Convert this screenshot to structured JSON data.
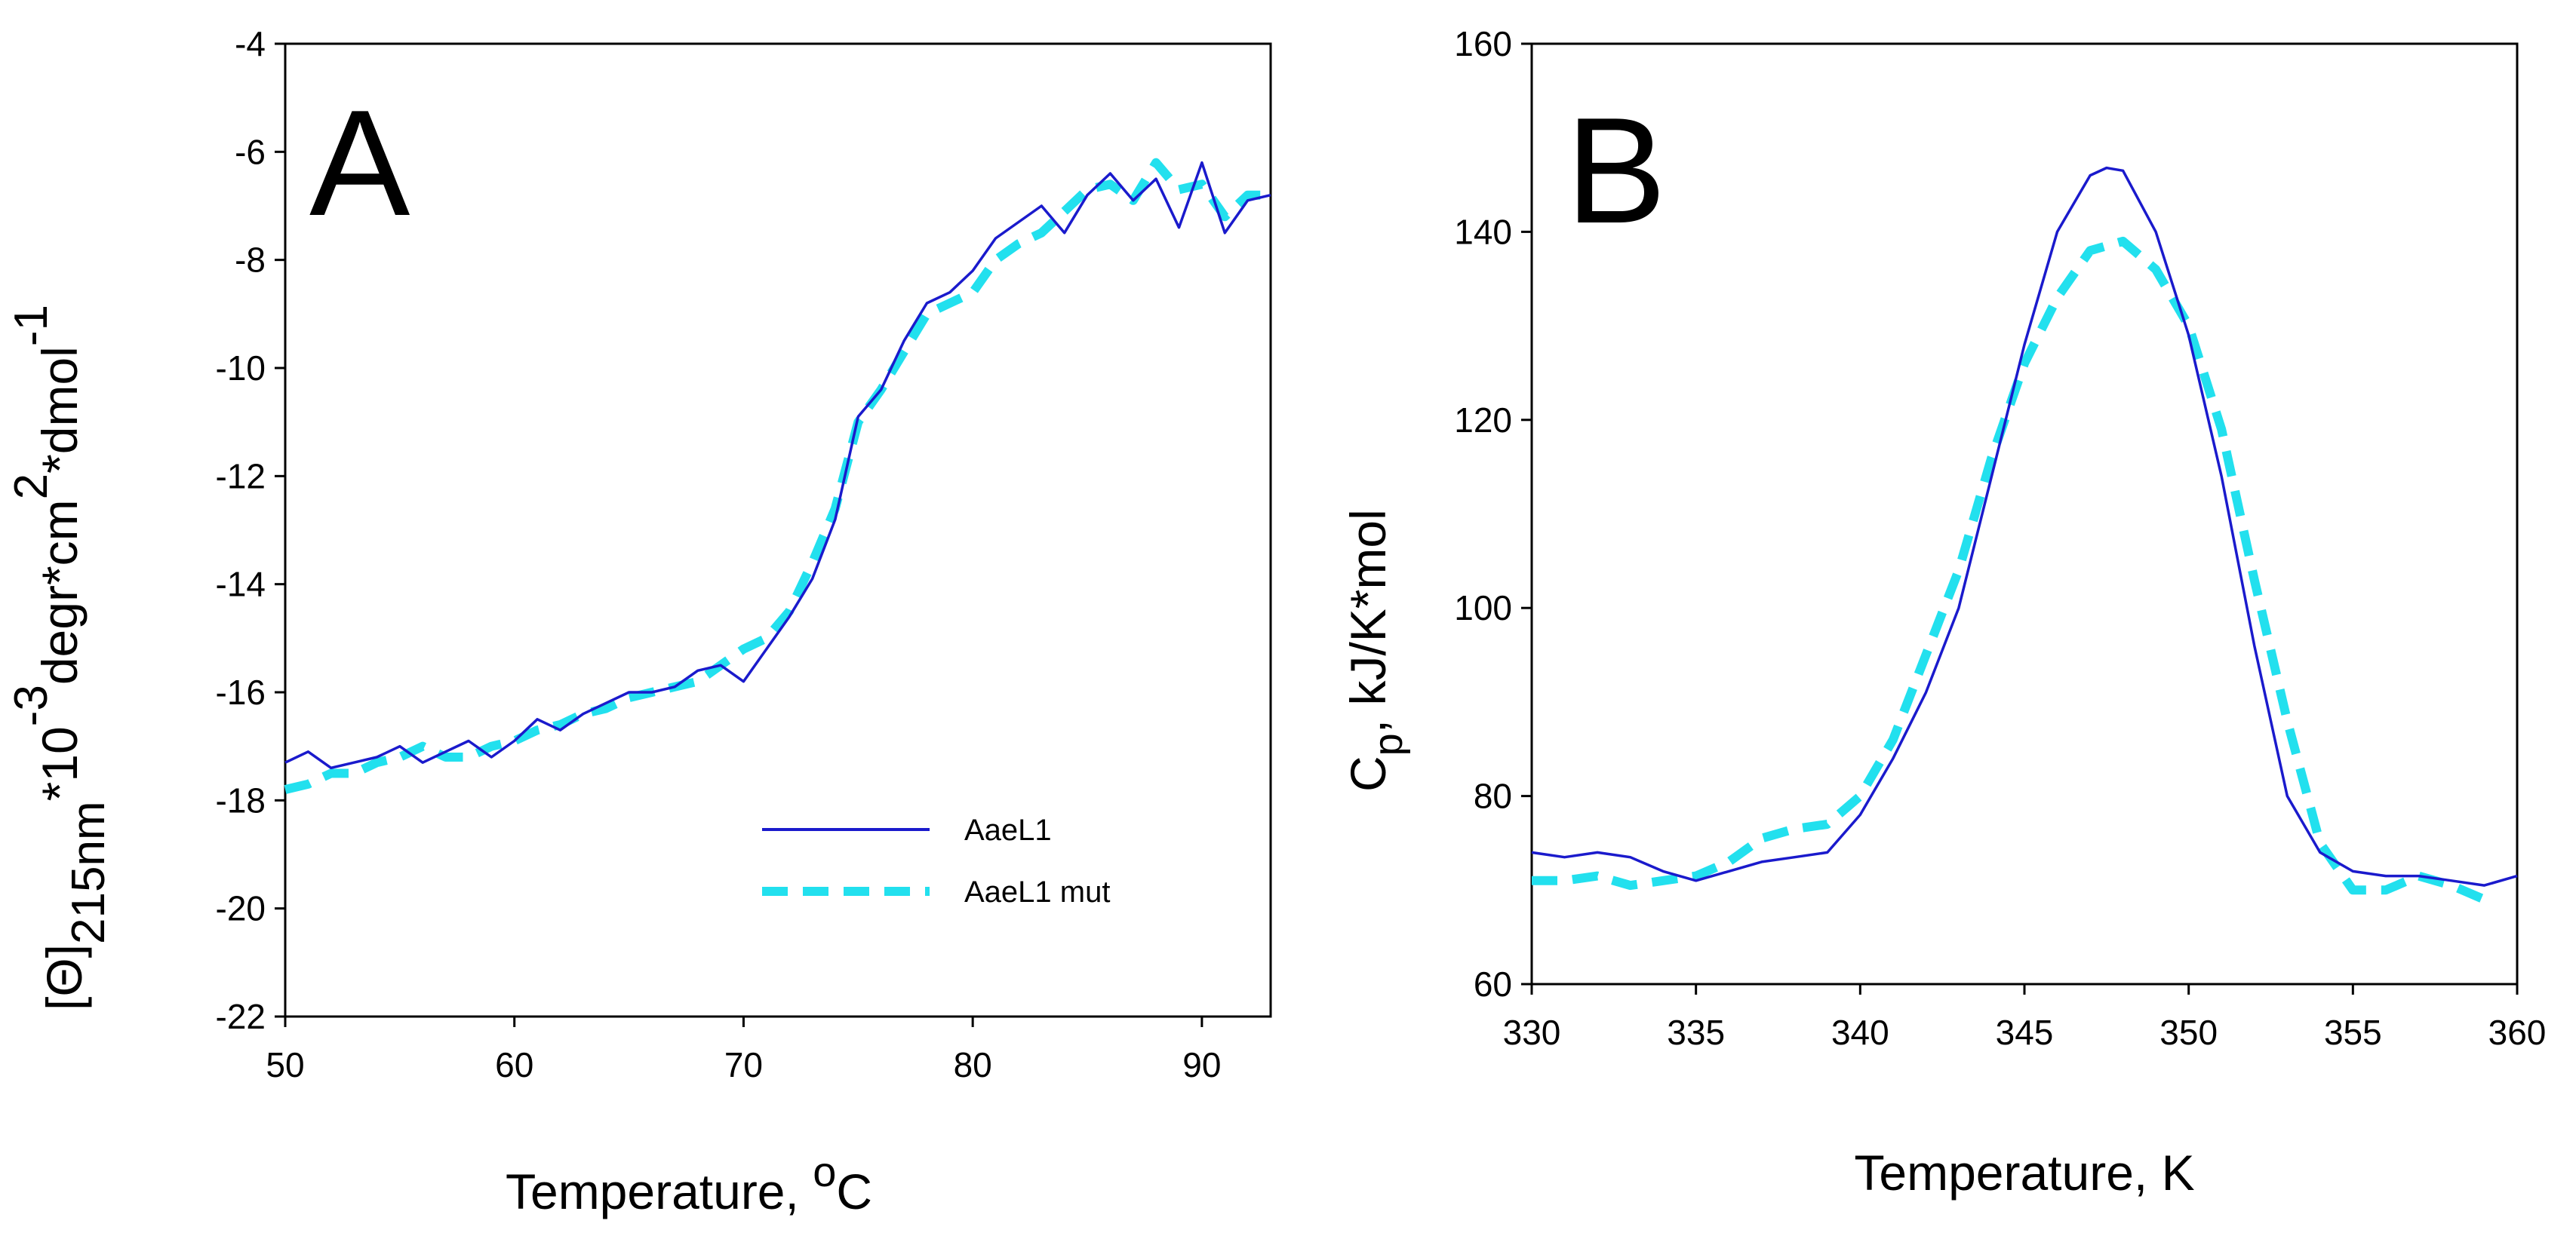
{
  "colors": {
    "solid": "#1a1acc",
    "dashed": "#22e0ee",
    "axis": "#000000"
  },
  "chart_data": [
    {
      "type": "line",
      "panel_label": "A",
      "xlabel": "Temperature, ",
      "xlabel_sup": "o",
      "xlabel_unit": "C",
      "ylabel_theta": "[Θ]",
      "ylabel_sub": "215nm",
      "ylabel_mid1": "*10",
      "ylabel_sup1": "-3",
      "ylabel_mid2": "degr*cm",
      "ylabel_sup2": "2",
      "ylabel_mid3": "*dmol",
      "ylabel_sup3": "-1",
      "xlim": [
        50,
        93
      ],
      "ylim": [
        -22,
        -4
      ],
      "xticks": [
        "50",
        "60",
        "70",
        "80",
        "90"
      ],
      "yticks": [
        "-22",
        "-20",
        "-18",
        "-16",
        "-14",
        "-12",
        "-10",
        "-8",
        "-6",
        "-4"
      ],
      "legend": {
        "placement": "bottom-right",
        "entries": [
          "AaeL1",
          "AaeL1 mut"
        ]
      },
      "series": [
        {
          "name": "AaeL1",
          "style": "solid",
          "x": [
            50,
            51,
            52,
            53,
            54,
            55,
            56,
            57,
            58,
            59,
            60,
            61,
            62,
            63,
            64,
            65,
            66,
            67,
            68,
            69,
            70,
            71,
            72,
            73,
            74,
            75,
            76,
            77,
            78,
            79,
            80,
            81,
            82,
            83,
            84,
            85,
            86,
            87,
            88,
            89,
            90,
            91,
            92,
            93
          ],
          "values": [
            -17.3,
            -17.1,
            -17.4,
            -17.3,
            -17.2,
            -17.0,
            -17.3,
            -17.1,
            -16.9,
            -17.2,
            -16.9,
            -16.5,
            -16.7,
            -16.4,
            -16.2,
            -16.0,
            -16.0,
            -15.9,
            -15.6,
            -15.5,
            -15.8,
            -15.2,
            -14.6,
            -13.9,
            -12.8,
            -10.9,
            -10.4,
            -9.5,
            -8.8,
            -8.6,
            -8.2,
            -7.6,
            -7.3,
            -7.0,
            -7.5,
            -6.8,
            -6.4,
            -6.9,
            -6.5,
            -7.4,
            -6.2,
            -7.5,
            -6.9,
            -6.8
          ]
        },
        {
          "name": "AaeL1 mut",
          "style": "dashed",
          "x": [
            50,
            51,
            52,
            53,
            54,
            55,
            56,
            57,
            58,
            59,
            60,
            61,
            62,
            63,
            64,
            65,
            66,
            67,
            68,
            69,
            70,
            71,
            72,
            73,
            74,
            75,
            76,
            77,
            78,
            79,
            80,
            81,
            82,
            83,
            84,
            85,
            86,
            87,
            88,
            89,
            90,
            91,
            92,
            93
          ],
          "values": [
            -17.8,
            -17.7,
            -17.5,
            -17.5,
            -17.3,
            -17.2,
            -17.0,
            -17.2,
            -17.2,
            -17.0,
            -16.9,
            -16.7,
            -16.6,
            -16.4,
            -16.3,
            -16.1,
            -16.0,
            -15.9,
            -15.8,
            -15.5,
            -15.2,
            -15.0,
            -14.5,
            -13.6,
            -12.6,
            -11.0,
            -10.4,
            -9.7,
            -9.0,
            -8.8,
            -8.6,
            -8.0,
            -7.7,
            -7.5,
            -7.1,
            -6.7,
            -6.6,
            -6.9,
            -6.2,
            -6.7,
            -6.6,
            -7.2,
            -6.8,
            -6.8
          ]
        }
      ]
    },
    {
      "type": "line",
      "panel_label": "B",
      "xlabel": "Temperature, K",
      "ylabel_main": "C",
      "ylabel_sub": "p",
      "ylabel_rest": ", kJ/K*mol",
      "xlim": [
        330,
        360
      ],
      "ylim": [
        60,
        160
      ],
      "xticks": [
        "330",
        "335",
        "340",
        "345",
        "350",
        "355",
        "360"
      ],
      "yticks": [
        "60",
        "80",
        "100",
        "120",
        "140",
        "160"
      ],
      "series": [
        {
          "name": "AaeL1",
          "style": "solid",
          "x": [
            330,
            331,
            332,
            333,
            334,
            335,
            336,
            337,
            338,
            339,
            340,
            341,
            342,
            343,
            344,
            345,
            346,
            347,
            347.5,
            348,
            349,
            350,
            351,
            352,
            353,
            354,
            355,
            356,
            357,
            358,
            359,
            360
          ],
          "values": [
            74,
            73.5,
            74,
            73.5,
            72,
            71,
            72,
            73,
            73.5,
            74,
            78,
            84,
            91,
            100,
            114,
            128,
            140,
            146,
            146.8,
            146.5,
            140,
            129,
            114,
            96,
            80,
            74,
            72,
            71.5,
            71.5,
            71,
            70.5,
            71.5
          ]
        },
        {
          "name": "AaeL1 mut",
          "style": "dashed",
          "x": [
            330,
            331,
            332,
            333,
            334,
            335,
            336,
            337,
            338,
            339,
            340,
            341,
            342,
            343,
            344,
            345,
            346,
            347,
            348,
            349,
            350,
            351,
            352,
            353,
            354,
            355,
            356,
            357,
            358,
            359
          ],
          "values": [
            71,
            71,
            71.5,
            70.5,
            71,
            71.5,
            73,
            75.5,
            76.5,
            77,
            80,
            86,
            95,
            104,
            116,
            126,
            133,
            138,
            139,
            136,
            130,
            119,
            103,
            88,
            75,
            70,
            70,
            71.5,
            70.5,
            69
          ]
        }
      ]
    }
  ]
}
